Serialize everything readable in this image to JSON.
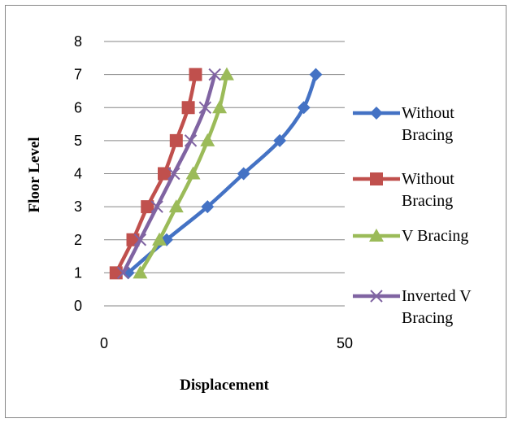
{
  "chart_data": {
    "type": "line",
    "title": "",
    "xlabel": "Displacement",
    "ylabel": "Floor Level",
    "xlim": [
      0,
      50
    ],
    "ylim": [
      0,
      8
    ],
    "xticks": [
      "0",
      "50"
    ],
    "yticks": [
      "0",
      "1",
      "2",
      "3",
      "4",
      "5",
      "6",
      "7",
      "8"
    ],
    "grid": "horizontal",
    "legend_position": "right",
    "series": [
      {
        "name": "Without Bracing",
        "legend_lines": [
          "Without",
          "Bracing"
        ],
        "color": "#4472C4",
        "marker": "diamond",
        "x": [
          5.0,
          13.0,
          21.5,
          29.0,
          36.5,
          41.5,
          44.0
        ],
        "y": [
          1,
          2,
          3,
          4,
          5,
          6,
          7
        ]
      },
      {
        "name": "Without Bracing",
        "legend_lines": [
          "Without",
          "Bracing"
        ],
        "color": "#C0504D",
        "marker": "square",
        "x": [
          2.5,
          6.0,
          9.0,
          12.5,
          15.0,
          17.5,
          19.0
        ],
        "y": [
          1,
          2,
          3,
          4,
          5,
          6,
          7
        ]
      },
      {
        "name": "V Bracing",
        "legend_lines": [
          "V Bracing"
        ],
        "color": "#9BBB59",
        "marker": "triangle",
        "x": [
          7.5,
          11.5,
          15.0,
          18.5,
          21.5,
          24.0,
          25.5
        ],
        "y": [
          1,
          2,
          3,
          4,
          5,
          6,
          7
        ]
      },
      {
        "name": "Inverted V Bracing",
        "legend_lines": [
          "Inverted V",
          "Bracing"
        ],
        "color": "#8064A2",
        "marker": "x",
        "x": [
          4.0,
          7.5,
          11.0,
          14.5,
          18.0,
          21.0,
          23.0
        ],
        "y": [
          1,
          2,
          3,
          4,
          5,
          6,
          7
        ]
      }
    ]
  }
}
